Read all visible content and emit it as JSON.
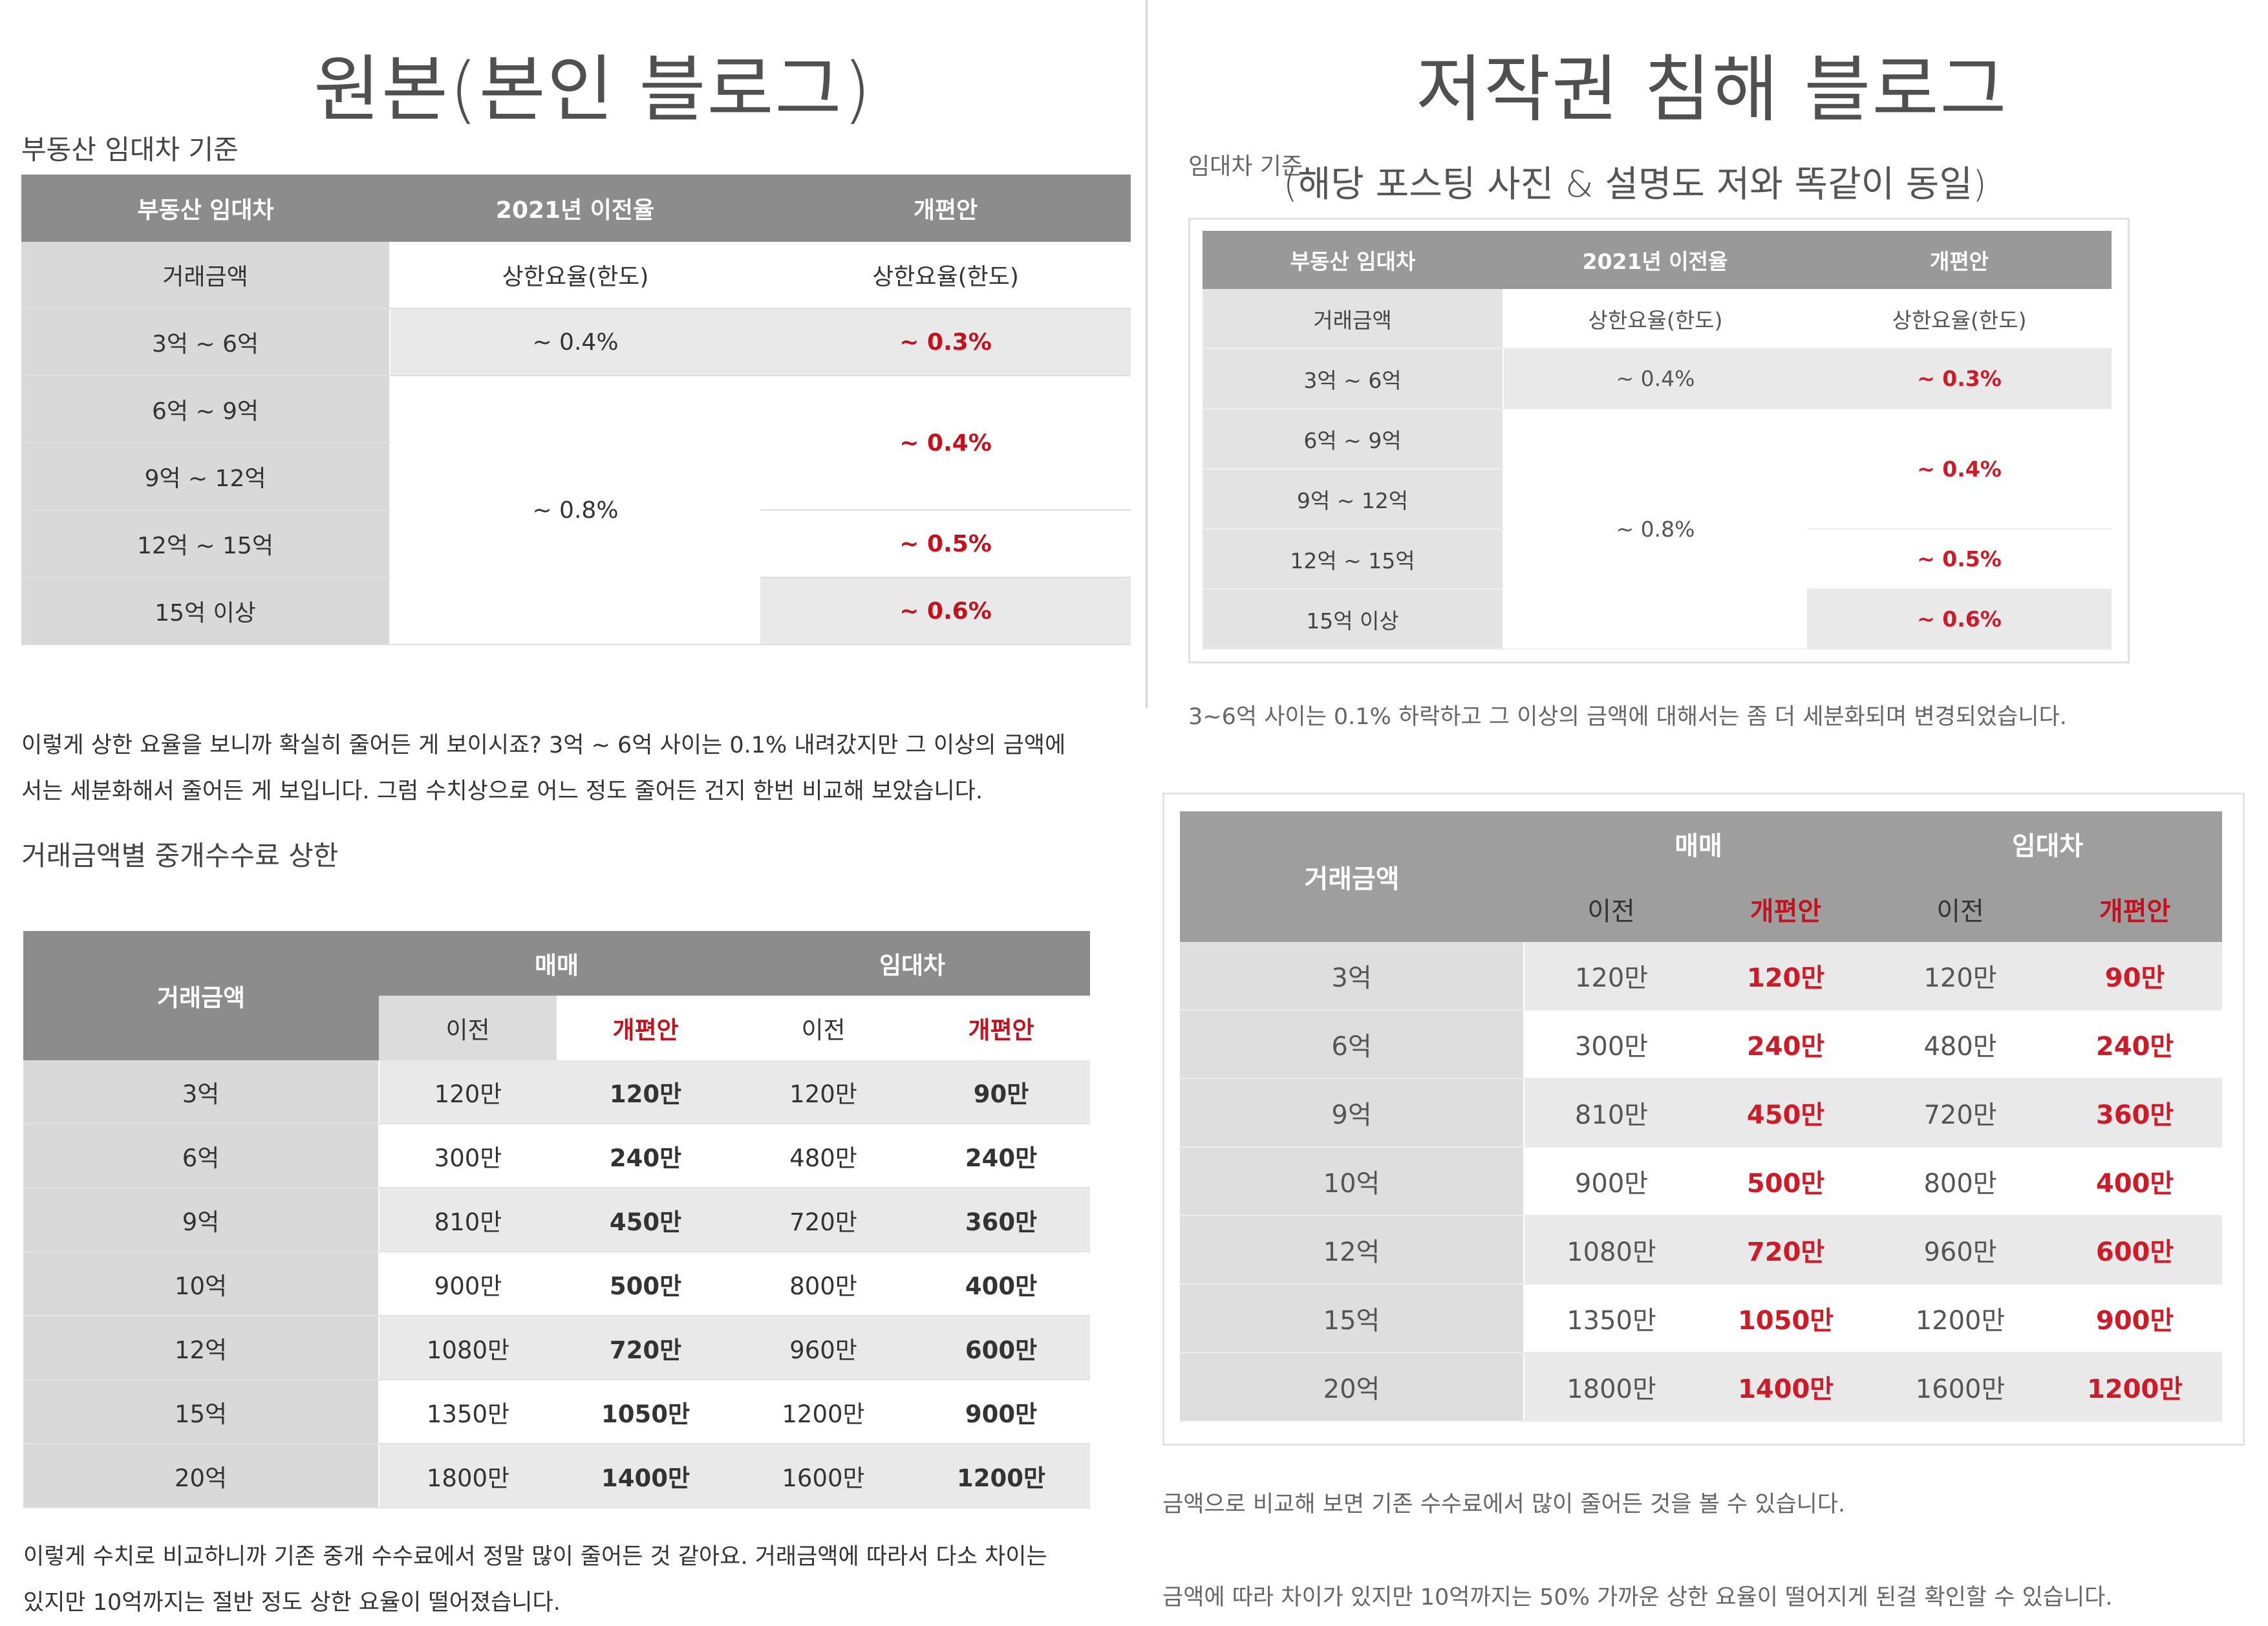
{
  "left": {
    "title": "원본(본인 블로그)",
    "section1_heading": "부동산 임대차 기준",
    "table1": {
      "headers": [
        "부동산 임대차",
        "2021년 이전율",
        "개편안"
      ],
      "subrow": [
        "거래금액",
        "상한요율(한도)",
        "상한요율(한도)"
      ],
      "labels": [
        "3억 ~ 6억",
        "6억 ~ 9억",
        "9억 ~ 12억",
        "12억 ~ 15억",
        "15억 이상"
      ],
      "prev": [
        "~ 0.4%",
        "~ 0.8%"
      ],
      "new": [
        "~ 0.3%",
        "~ 0.4%",
        "~ 0.5%",
        "~ 0.6%"
      ]
    },
    "para1_line1": "이렇게 상한 요율을 보니까 확실히 줄어든 게 보이시죠? 3억 ~ 6억 사이는 0.1% 내려갔지만 그 이상의 금액에",
    "para1_line2": "서는 세분화해서 줄어든 게 보입니다. 그럼 수치상으로 어느 정도 줄어든 건지 한번 비교해 보았습니다.",
    "section2_heading": "거래금액별 중개수수료 상한",
    "para2_line1": "이렇게 수치로 비교하니까 기존 중개 수수료에서 정말 많이 줄어든 것 같아요. 거래금액에 따라서 다소 차이는",
    "para2_line2": "있지만 10억까지는 절반 정도 상한 요율이 떨어졌습니다."
  },
  "right": {
    "title": "저작권 침해 블로그",
    "small_heading": "임대차 기준",
    "note": "(해당 포스팅 사진 & 설명도 저와 똑같이 동일)",
    "para1": "3~6억 사이는 0.1% 하락하고 그 이상의 금액에 대해서는 좀 더 세분화되며 변경되었습니다.",
    "para2": "금액으로 비교해 보면 기존 수수료에서 많이 줄어든 것을 볼 수 있습니다.",
    "para3": "금액에 따라 차이가 있지만 10억까지는 50% 가까운 상한 요율이 떨어지게 된걸 확인할 수 있습니다."
  },
  "fee_table": {
    "col_amount": "거래금액",
    "group_sale": "매매",
    "group_lease": "임대차",
    "sub_prev": "이전",
    "sub_new": "개편안",
    "rows": [
      {
        "amount": "3억",
        "sale_prev": "120만",
        "sale_new": "120만",
        "lease_prev": "120만",
        "lease_new": "90만"
      },
      {
        "amount": "6억",
        "sale_prev": "300만",
        "sale_new": "240만",
        "lease_prev": "480만",
        "lease_new": "240만"
      },
      {
        "amount": "9억",
        "sale_prev": "810만",
        "sale_new": "450만",
        "lease_prev": "720만",
        "lease_new": "360만"
      },
      {
        "amount": "10억",
        "sale_prev": "900만",
        "sale_new": "500만",
        "lease_prev": "800만",
        "lease_new": "400만"
      },
      {
        "amount": "12억",
        "sale_prev": "1080만",
        "sale_new": "720만",
        "lease_prev": "960만",
        "lease_new": "600만"
      },
      {
        "amount": "15억",
        "sale_prev": "1350만",
        "sale_new": "1050만",
        "lease_prev": "1200만",
        "lease_new": "900만"
      },
      {
        "amount": "20억",
        "sale_prev": "1800만",
        "sale_new": "1400만",
        "lease_prev": "1600만",
        "lease_new": "1200만"
      }
    ]
  },
  "colors": {
    "accent_red": "#c4111e",
    "header_grey": "#8c8c8c",
    "row_grey": "#e9e9e9"
  }
}
